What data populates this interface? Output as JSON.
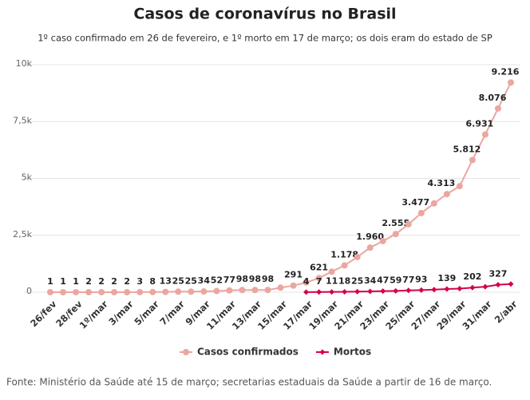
{
  "chart_data": {
    "type": "line",
    "title": "Casos de coronavírus no Brasil",
    "subtitle": "1º caso confirmado em 26 de fevereiro, e 1º morto em 17 de março; os dois eram do estado de SP",
    "source": "Fonte: Ministério da Saúde até 15 de março; secretarias estaduais da Saúde a partir de 16 de março.",
    "categories": [
      "26/fev",
      null,
      "28/fev",
      null,
      "1º/mar",
      null,
      "3/mar",
      null,
      "5/mar",
      null,
      "7/mar",
      null,
      "9/mar",
      null,
      "11/mar",
      null,
      "13/mar",
      null,
      "15/mar",
      null,
      "17/mar",
      null,
      "19/mar",
      null,
      "21/mar",
      null,
      "23/mar",
      null,
      "25/mar",
      null,
      "27/mar",
      null,
      "29/mar",
      null,
      "31/mar",
      null,
      "2/abr"
    ],
    "series": [
      {
        "name": "Casos confirmados",
        "color": "#eba6a0",
        "values": [
          1,
          1,
          1,
          2,
          2,
          2,
          2,
          3,
          8,
          13,
          25,
          25,
          34,
          52,
          77,
          98,
          98,
          98,
          200,
          291,
          428,
          621,
          904,
          1178,
          1546,
          1960,
          2247,
          2555,
          2985,
          3477,
          3904,
          4313,
          4661,
          5812,
          6931,
          8076,
          9216
        ],
        "value_labels": [
          "1",
          "1",
          "1",
          "2",
          "2",
          "2",
          "2",
          "3",
          "8",
          "13",
          "25",
          "25",
          "34",
          "52",
          "77",
          "98",
          "98",
          "98",
          null,
          "291",
          null,
          "621",
          null,
          "1.178",
          null,
          "1.960",
          null,
          "2.555",
          null,
          "3.477",
          null,
          "4.313",
          null,
          "5.812",
          "6.931",
          "8.076",
          "9.216"
        ]
      },
      {
        "name": "Mortos",
        "color": "#d6004c",
        "values": [
          null,
          null,
          null,
          null,
          null,
          null,
          null,
          null,
          null,
          null,
          null,
          null,
          null,
          null,
          null,
          null,
          null,
          null,
          null,
          null,
          4,
          7,
          11,
          18,
          25,
          34,
          47,
          59,
          77,
          93,
          114,
          139,
          159,
          202,
          240,
          327,
          359
        ],
        "value_labels": [
          null,
          null,
          null,
          null,
          null,
          null,
          null,
          null,
          null,
          null,
          null,
          null,
          null,
          null,
          null,
          null,
          null,
          null,
          null,
          null,
          "4",
          "7",
          "11",
          "18",
          "25",
          "34",
          "47",
          "59",
          "77",
          "93",
          null,
          "139",
          null,
          "202",
          null,
          "327",
          null
        ]
      }
    ],
    "ylim": [
      0,
      10000
    ],
    "yticks": [
      0,
      {
        "value": 2500,
        "label": "2,5k"
      },
      {
        "value": 5000,
        "label": "5k"
      },
      {
        "value": 7500,
        "label": "7,5k"
      },
      {
        "value": 10000,
        "label": "10k"
      }
    ],
    "grid": true
  }
}
